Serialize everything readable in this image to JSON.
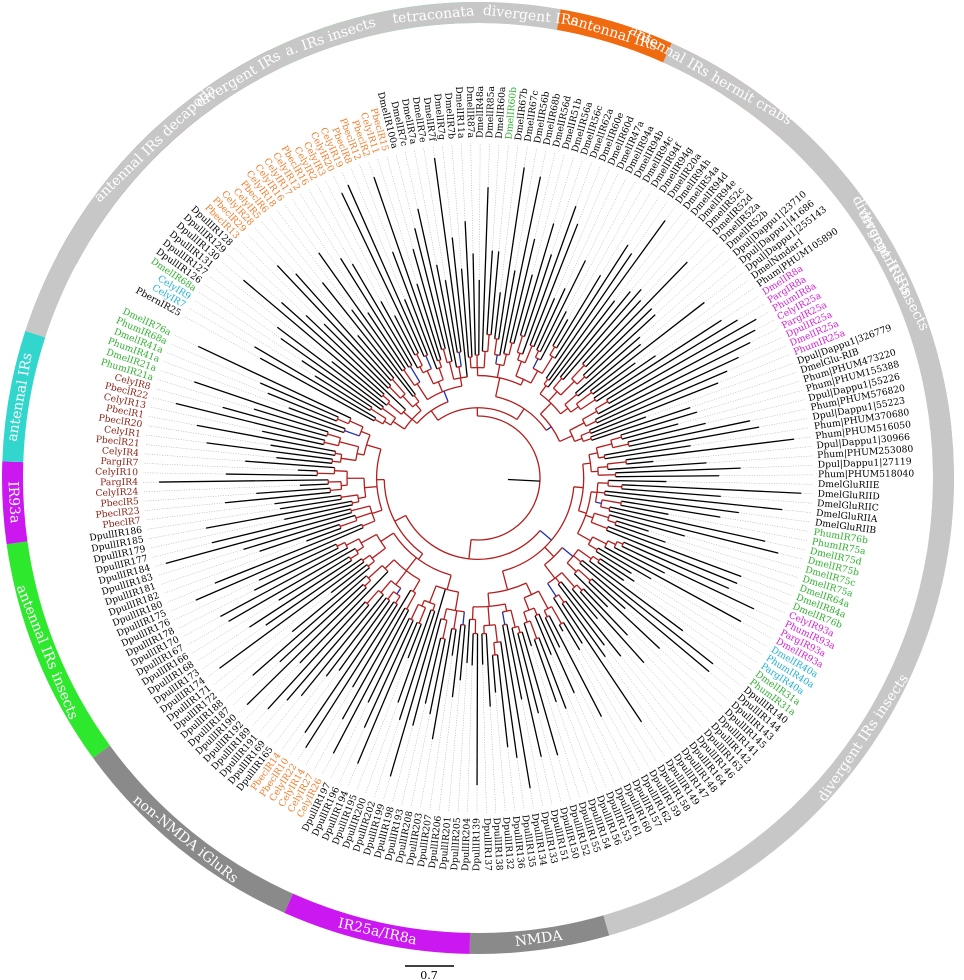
{
  "colors": {
    "antennal_decapoda": "#7a2115",
    "insects_green": "#2ee82e",
    "cyan": "#33d6cc",
    "grey_band": "#c7c7c7",
    "orange": "#f06a10",
    "magenta": "#cc18f0",
    "dark_grey": "#8a8a8a",
    "leaf_black": "#000000",
    "leaf_orange": "#f07c2a",
    "leaf_brown": "#8a2418",
    "leaf_green": "#2fb02f",
    "leaf_cyan": "#21b0d0",
    "leaf_magenta": "#d21ed2",
    "branch_red": "#b31e1e",
    "branch_blue": "#1c2fb0"
  },
  "ring_segments": [
    {
      "label": "antennal IRs decapoda",
      "start": 298,
      "end": 334,
      "color_key": "antennal_decapoda"
    },
    {
      "label": "a. IRs insects",
      "start": 334,
      "end": 349,
      "color_key": "insects_green"
    },
    {
      "label": "tetraconata",
      "start": 349,
      "end": 360,
      "color_key": "cyan"
    },
    {
      "label": "divergent IRs",
      "start": 360,
      "end": 373,
      "color_key": "grey_band"
    },
    {
      "label": "antennal IRs hermit crabs",
      "start": 373,
      "end": 407,
      "color_key": "orange"
    },
    {
      "label": "divergent IRs insects",
      "start": 407,
      "end": 438,
      "color_key": "grey_band"
    },
    {
      "label": "",
      "start": 438,
      "end": 444,
      "color_key": "insects_green"
    },
    {
      "label": "divergent IRs insects",
      "start": 444,
      "end": 524,
      "color_key": "grey_band"
    },
    {
      "label": "NMDA",
      "start": 524,
      "end": 541,
      "color_key": "dark_grey"
    },
    {
      "label": "IR25a/IR8a",
      "start": 541,
      "end": 564,
      "color_key": "magenta"
    },
    {
      "label": "non-NMDA iGluRs",
      "start": 564,
      "end": 594,
      "color_key": "dark_grey"
    },
    {
      "label": "antennal IRs insects",
      "start": 594,
      "end": 622,
      "color_key": "insects_green"
    },
    {
      "label": "IR93a",
      "start": 622,
      "end": 632,
      "color_key": "magenta"
    },
    {
      "label": "antennal IRs",
      "start": 632,
      "end": 648,
      "color_key": "cyan"
    },
    {
      "label": "divergent IRs",
      "start": 648,
      "end": 730,
      "color_key": "grey_band"
    },
    {
      "label": "antennal IRs",
      "start": 730,
      "end": 744,
      "color_key": "orange"
    },
    {
      "label": "divergent IRs",
      "start": 744,
      "end": 818,
      "color_key": "grey_band"
    }
  ],
  "leaves": [
    {
      "label": "PbernIR25",
      "color_key": "leaf_black"
    },
    {
      "label": "CelyIR7",
      "color_key": "leaf_cyan"
    },
    {
      "label": "CelyIR9",
      "color_key": "leaf_cyan"
    },
    {
      "label": "DmelIR68a",
      "color_key": "leaf_green"
    },
    {
      "label": "DpullIR126",
      "color_key": "leaf_black"
    },
    {
      "label": "DpullIR127",
      "color_key": "leaf_black"
    },
    {
      "label": "DpullIR131",
      "color_key": "leaf_black"
    },
    {
      "label": "DpullIR130",
      "color_key": "leaf_black"
    },
    {
      "label": "DpullIR129",
      "color_key": "leaf_black"
    },
    {
      "label": "DpullIR128",
      "color_key": "leaf_black"
    },
    {
      "label": "PbeclR13",
      "color_key": "leaf_orange"
    },
    {
      "label": "PbeclR29",
      "color_key": "leaf_orange"
    },
    {
      "label": "CelyIR28",
      "color_key": "leaf_orange"
    },
    {
      "label": "CelyIR5",
      "color_key": "leaf_orange"
    },
    {
      "label": "PbeclR6",
      "color_key": "leaf_orange"
    },
    {
      "label": "CelyIR18",
      "color_key": "leaf_orange"
    },
    {
      "label": "CelyIR16",
      "color_key": "leaf_orange"
    },
    {
      "label": "CelyIR17",
      "color_key": "leaf_orange"
    },
    {
      "label": "CelyIR12",
      "color_key": "leaf_orange"
    },
    {
      "label": "PbeclR16",
      "color_key": "leaf_orange"
    },
    {
      "label": "CelyIR2",
      "color_key": "leaf_orange"
    },
    {
      "label": "CelyIR3",
      "color_key": "leaf_orange"
    },
    {
      "label": "CelyIR20",
      "color_key": "leaf_orange"
    },
    {
      "label": "CelyIR19",
      "color_key": "leaf_orange"
    },
    {
      "label": "PbeclR8",
      "color_key": "leaf_orange"
    },
    {
      "label": "PbeclR12",
      "color_key": "leaf_orange"
    },
    {
      "label": "PbeclR2",
      "color_key": "leaf_orange"
    },
    {
      "label": "CelyIR11",
      "color_key": "leaf_orange"
    },
    {
      "label": "PbeclR15",
      "color_key": "leaf_orange"
    },
    {
      "label": "DmelIR100a",
      "color_key": "leaf_black"
    },
    {
      "label": "DmelIR7c",
      "color_key": "leaf_black"
    },
    {
      "label": "DmelIR7a",
      "color_key": "leaf_black"
    },
    {
      "label": "DmelIR7e",
      "color_key": "leaf_black"
    },
    {
      "label": "DmelIR7f",
      "color_key": "leaf_black"
    },
    {
      "label": "DmelIR7g",
      "color_key": "leaf_black"
    },
    {
      "label": "DmelIR7b",
      "color_key": "leaf_black"
    },
    {
      "label": "DmelIR11a",
      "color_key": "leaf_black"
    },
    {
      "label": "DmelIR87a",
      "color_key": "leaf_black"
    },
    {
      "label": "DmelIR48a",
      "color_key": "leaf_black"
    },
    {
      "label": "DmelIR85a",
      "color_key": "leaf_black"
    },
    {
      "label": "DmelIR60a",
      "color_key": "leaf_black"
    },
    {
      "label": "DmelIR60b",
      "color_key": "leaf_green"
    },
    {
      "label": "DmelIR67b",
      "color_key": "leaf_black"
    },
    {
      "label": "DmelIR67c",
      "color_key": "leaf_black"
    },
    {
      "label": "DmelIR56b",
      "color_key": "leaf_black"
    },
    {
      "label": "DmelIR68b",
      "color_key": "leaf_black"
    },
    {
      "label": "DmelIR56d",
      "color_key": "leaf_black"
    },
    {
      "label": "DmelIR51b",
      "color_key": "leaf_black"
    },
    {
      "label": "DmelIR56a",
      "color_key": "leaf_black"
    },
    {
      "label": "DmelIR56c",
      "color_key": "leaf_black"
    },
    {
      "label": "DmelIR62a",
      "color_key": "leaf_black"
    },
    {
      "label": "DmelIR60e",
      "color_key": "leaf_black"
    },
    {
      "label": "DmelIR60d",
      "color_key": "leaf_black"
    },
    {
      "label": "DmelIR47a",
      "color_key": "leaf_black"
    },
    {
      "label": "DmelIR94a",
      "color_key": "leaf_black"
    },
    {
      "label": "DmelIR94b",
      "color_key": "leaf_black"
    },
    {
      "label": "DmelIR94c",
      "color_key": "leaf_black"
    },
    {
      "label": "DmelIR94f",
      "color_key": "leaf_black"
    },
    {
      "label": "DmelIR94g",
      "color_key": "leaf_black"
    },
    {
      "label": "DmelIR20a",
      "color_key": "leaf_black"
    },
    {
      "label": "DmelIR94h",
      "color_key": "leaf_black"
    },
    {
      "label": "DmelIR54a",
      "color_key": "leaf_black"
    },
    {
      "label": "DmelIR94d",
      "color_key": "leaf_black"
    },
    {
      "label": "DmelIR94e",
      "color_key": "leaf_black"
    },
    {
      "label": "DmelIR52c",
      "color_key": "leaf_black"
    },
    {
      "label": "DmelIR52d",
      "color_key": "leaf_black"
    },
    {
      "label": "DmelIR52a",
      "color_key": "leaf_black"
    },
    {
      "label": "DmelIR52b",
      "color_key": "leaf_black"
    },
    {
      "label": "Dpul|Dappu1|23710",
      "color_key": "leaf_black"
    },
    {
      "label": "Dpul|Dappu1|41686",
      "color_key": "leaf_black"
    },
    {
      "label": "Dpul|Dappu1|255143",
      "color_key": "leaf_black"
    },
    {
      "label": "DmelNmdar1",
      "color_key": "leaf_black"
    },
    {
      "label": "Phum|PHUM105890",
      "color_key": "leaf_black"
    },
    {
      "label": "DmelIR8a",
      "color_key": "leaf_magenta"
    },
    {
      "label": "PargIR8a",
      "color_key": "leaf_magenta"
    },
    {
      "label": "PhumIR8a",
      "color_key": "leaf_magenta"
    },
    {
      "label": "CelyIR25a",
      "color_key": "leaf_magenta"
    },
    {
      "label": "PargIR25a",
      "color_key": "leaf_magenta"
    },
    {
      "label": "DpulIR25a",
      "color_key": "leaf_magenta"
    },
    {
      "label": "DmelIR25a",
      "color_key": "leaf_magenta"
    },
    {
      "label": "PhumIR25a",
      "color_key": "leaf_magenta"
    },
    {
      "label": "Dpul|Dappu1|326779",
      "color_key": "leaf_black"
    },
    {
      "label": "DmelGlu-RIB",
      "color_key": "leaf_black"
    },
    {
      "label": "Phum|PHUM473220",
      "color_key": "leaf_black"
    },
    {
      "label": "Phum|PHUM155388",
      "color_key": "leaf_black"
    },
    {
      "label": "Dpul|Dappu1|55226",
      "color_key": "leaf_black"
    },
    {
      "label": "Phum|PHUM576820",
      "color_key": "leaf_black"
    },
    {
      "label": "Dpul|Dappu1|55223",
      "color_key": "leaf_black"
    },
    {
      "label": "Phum|PHUM370680",
      "color_key": "leaf_black"
    },
    {
      "label": "Phum|PHUM516050",
      "color_key": "leaf_black"
    },
    {
      "label": "Dpul|Dappu1|30966",
      "color_key": "leaf_black"
    },
    {
      "label": "Phum|PHUM253080",
      "color_key": "leaf_black"
    },
    {
      "label": "Dpul|Dappu1|27119",
      "color_key": "leaf_black"
    },
    {
      "label": "Phum|PHUM518040",
      "color_key": "leaf_black"
    },
    {
      "label": "DmelGluRIIE",
      "color_key": "leaf_black"
    },
    {
      "label": "DmelGluRIID",
      "color_key": "leaf_black"
    },
    {
      "label": "DmelGluRIIC",
      "color_key": "leaf_black"
    },
    {
      "label": "DmelGluRIIA",
      "color_key": "leaf_black"
    },
    {
      "label": "DmelGluRIIB",
      "color_key": "leaf_black"
    },
    {
      "label": "PhumIR76b",
      "color_key": "leaf_green"
    },
    {
      "label": "PhumIR75a",
      "color_key": "leaf_green"
    },
    {
      "label": "DmelIR75d",
      "color_key": "leaf_green"
    },
    {
      "label": "DmelIR75b",
      "color_key": "leaf_green"
    },
    {
      "label": "DmelIR75c",
      "color_key": "leaf_green"
    },
    {
      "label": "DmelIR75a",
      "color_key": "leaf_green"
    },
    {
      "label": "DmelIR64a",
      "color_key": "leaf_green"
    },
    {
      "label": "DmelIR84a",
      "color_key": "leaf_green"
    },
    {
      "label": "DmelIR76b",
      "color_key": "leaf_green"
    },
    {
      "label": "CelyIR93a",
      "color_key": "leaf_magenta"
    },
    {
      "label": "PhumIR93a",
      "color_key": "leaf_magenta"
    },
    {
      "label": "PargIR93a",
      "color_key": "leaf_magenta"
    },
    {
      "label": "DmelIR93a",
      "color_key": "leaf_magenta"
    },
    {
      "label": "DmelIR40a",
      "color_key": "leaf_cyan"
    },
    {
      "label": "PhumIR40a",
      "color_key": "leaf_cyan"
    },
    {
      "label": "PargIR40a",
      "color_key": "leaf_cyan"
    },
    {
      "label": "DmelIR31a",
      "color_key": "leaf_green"
    },
    {
      "label": "PhumIR31a",
      "color_key": "leaf_green"
    },
    {
      "label": "DpullIR140",
      "color_key": "leaf_black"
    },
    {
      "label": "DpullIR144",
      "color_key": "leaf_black"
    },
    {
      "label": "DpullIR143",
      "color_key": "leaf_black"
    },
    {
      "label": "DpullIR145",
      "color_key": "leaf_black"
    },
    {
      "label": "DpullIR141",
      "color_key": "leaf_black"
    },
    {
      "label": "DpullIR142",
      "color_key": "leaf_black"
    },
    {
      "label": "DpullIR163",
      "color_key": "leaf_black"
    },
    {
      "label": "DpullIR146",
      "color_key": "leaf_black"
    },
    {
      "label": "DpullIR164",
      "color_key": "leaf_black"
    },
    {
      "label": "DpullIR148",
      "color_key": "leaf_black"
    },
    {
      "label": "DpullIR147",
      "color_key": "leaf_black"
    },
    {
      "label": "DpullIR149",
      "color_key": "leaf_black"
    },
    {
      "label": "DpullIR158",
      "color_key": "leaf_black"
    },
    {
      "label": "DpullIR159",
      "color_key": "leaf_black"
    },
    {
      "label": "DpullIR162",
      "color_key": "leaf_black"
    },
    {
      "label": "DpullIR157",
      "color_key": "leaf_black"
    },
    {
      "label": "DpullIR160",
      "color_key": "leaf_black"
    },
    {
      "label": "DpullIR161",
      "color_key": "leaf_black"
    },
    {
      "label": "DpullIR153",
      "color_key": "leaf_black"
    },
    {
      "label": "DpullIR156",
      "color_key": "leaf_black"
    },
    {
      "label": "DpullIR154",
      "color_key": "leaf_black"
    },
    {
      "label": "DpullIR155",
      "color_key": "leaf_black"
    },
    {
      "label": "DpullIR152",
      "color_key": "leaf_black"
    },
    {
      "label": "DpullIR150",
      "color_key": "leaf_black"
    },
    {
      "label": "DpullIR151",
      "color_key": "leaf_black"
    },
    {
      "label": "DpullIR133",
      "color_key": "leaf_black"
    },
    {
      "label": "DpullIR134",
      "color_key": "leaf_black"
    },
    {
      "label": "DpullIR135",
      "color_key": "leaf_black"
    },
    {
      "label": "DpullIR136",
      "color_key": "leaf_black"
    },
    {
      "label": "DpullIR132",
      "color_key": "leaf_black"
    },
    {
      "label": "DpullIR138",
      "color_key": "leaf_black"
    },
    {
      "label": "DpullIR137",
      "color_key": "leaf_black"
    },
    {
      "label": "DpullIR139",
      "color_key": "leaf_black"
    },
    {
      "label": "DpullIR204",
      "color_key": "leaf_black"
    },
    {
      "label": "DpullIR205",
      "color_key": "leaf_black"
    },
    {
      "label": "DpullIR201",
      "color_key": "leaf_black"
    },
    {
      "label": "DpullIR206",
      "color_key": "leaf_black"
    },
    {
      "label": "DpullIR207",
      "color_key": "leaf_black"
    },
    {
      "label": "DpullIR203",
      "color_key": "leaf_black"
    },
    {
      "label": "DpullIR208",
      "color_key": "leaf_black"
    },
    {
      "label": "DpullIR193",
      "color_key": "leaf_black"
    },
    {
      "label": "DpullIR198",
      "color_key": "leaf_black"
    },
    {
      "label": "DpullIR199",
      "color_key": "leaf_black"
    },
    {
      "label": "DpullIR202",
      "color_key": "leaf_black"
    },
    {
      "label": "DpullIR200",
      "color_key": "leaf_black"
    },
    {
      "label": "DpullIR195",
      "color_key": "leaf_black"
    },
    {
      "label": "DpullIR194",
      "color_key": "leaf_black"
    },
    {
      "label": "DpullIR196",
      "color_key": "leaf_black"
    },
    {
      "label": "DpullIR197",
      "color_key": "leaf_black"
    },
    {
      "label": "CelyIR26",
      "color_key": "leaf_orange"
    },
    {
      "label": "CelyIR27",
      "color_key": "leaf_orange"
    },
    {
      "label": "CelyIR14",
      "color_key": "leaf_orange"
    },
    {
      "label": "CelyIR22",
      "color_key": "leaf_orange"
    },
    {
      "label": "PbeclR10",
      "color_key": "leaf_orange"
    },
    {
      "label": "PbeclR14",
      "color_key": "leaf_orange"
    },
    {
      "label": "DpullIR165",
      "color_key": "leaf_black"
    },
    {
      "label": "DpullIR169",
      "color_key": "leaf_black"
    },
    {
      "label": "DpullIR191",
      "color_key": "leaf_black"
    },
    {
      "label": "DpullIR189",
      "color_key": "leaf_black"
    },
    {
      "label": "DpullIR192",
      "color_key": "leaf_black"
    },
    {
      "label": "DpullIR190",
      "color_key": "leaf_black"
    },
    {
      "label": "DpullIR187",
      "color_key": "leaf_black"
    },
    {
      "label": "DpullIR188",
      "color_key": "leaf_black"
    },
    {
      "label": "DpullIR172",
      "color_key": "leaf_black"
    },
    {
      "label": "DpullIR171",
      "color_key": "leaf_black"
    },
    {
      "label": "DpullIR174",
      "color_key": "leaf_black"
    },
    {
      "label": "DpullIR173",
      "color_key": "leaf_black"
    },
    {
      "label": "DpullIR168",
      "color_key": "leaf_black"
    },
    {
      "label": "DpullIR166",
      "color_key": "leaf_black"
    },
    {
      "label": "DpullIR167",
      "color_key": "leaf_black"
    },
    {
      "label": "DpullIR170",
      "color_key": "leaf_black"
    },
    {
      "label": "DpullIR178",
      "color_key": "leaf_black"
    },
    {
      "label": "DpullIR176",
      "color_key": "leaf_black"
    },
    {
      "label": "DpullIR175",
      "color_key": "leaf_black"
    },
    {
      "label": "DpullIR180",
      "color_key": "leaf_black"
    },
    {
      "label": "DpullIR182",
      "color_key": "leaf_black"
    },
    {
      "label": "DpullIR181",
      "color_key": "leaf_black"
    },
    {
      "label": "DpullIR183",
      "color_key": "leaf_black"
    },
    {
      "label": "DpullIR184",
      "color_key": "leaf_black"
    },
    {
      "label": "DpullIR177",
      "color_key": "leaf_black"
    },
    {
      "label": "DpullIR179",
      "color_key": "leaf_black"
    },
    {
      "label": "DpullIR185",
      "color_key": "leaf_black"
    },
    {
      "label": "DpullIR186",
      "color_key": "leaf_black"
    },
    {
      "label": "PbeclR7",
      "color_key": "leaf_brown"
    },
    {
      "label": "PbeclR23",
      "color_key": "leaf_brown"
    },
    {
      "label": "PbeclR5",
      "color_key": "leaf_brown"
    },
    {
      "label": "CelyIR24",
      "color_key": "leaf_brown"
    },
    {
      "label": "PargIR4",
      "color_key": "leaf_brown"
    },
    {
      "label": "CelyIR10",
      "color_key": "leaf_brown"
    },
    {
      "label": "PargIR7",
      "color_key": "leaf_brown"
    },
    {
      "label": "CelyIR4",
      "color_key": "leaf_brown"
    },
    {
      "label": "PbeclR21",
      "color_key": "leaf_brown"
    },
    {
      "label": "CelyIR1",
      "color_key": "leaf_brown"
    },
    {
      "label": "PbeclR20",
      "color_key": "leaf_brown"
    },
    {
      "label": "PbeclR1",
      "color_key": "leaf_brown"
    },
    {
      "label": "CelyIR13",
      "color_key": "leaf_brown"
    },
    {
      "label": "PbeclR22",
      "color_key": "leaf_brown"
    },
    {
      "label": "CelyIR8",
      "color_key": "leaf_brown"
    },
    {
      "label": "PhumIR21a",
      "color_key": "leaf_green"
    },
    {
      "label": "DmelIR21a",
      "color_key": "leaf_green"
    },
    {
      "label": "PhumIR41a",
      "color_key": "leaf_green"
    },
    {
      "label": "DmelIR41a",
      "color_key": "leaf_green"
    },
    {
      "label": "PhumIR68a",
      "color_key": "leaf_green"
    },
    {
      "label": "DmelIR76a",
      "color_key": "leaf_green"
    }
  ],
  "scale": {
    "label": "0.7"
  }
}
